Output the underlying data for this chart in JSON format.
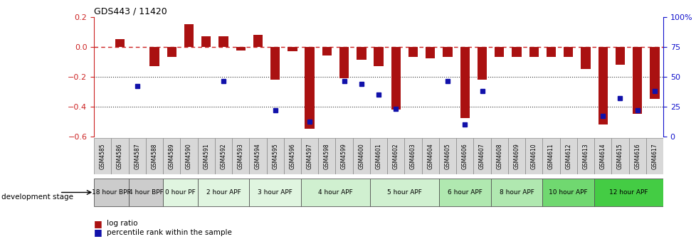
{
  "title": "GDS443 / 11420",
  "samples": [
    "GSM4585",
    "GSM4586",
    "GSM4587",
    "GSM4588",
    "GSM4589",
    "GSM4590",
    "GSM4591",
    "GSM4592",
    "GSM4593",
    "GSM4594",
    "GSM4595",
    "GSM4596",
    "GSM4597",
    "GSM4598",
    "GSM4599",
    "GSM4600",
    "GSM4601",
    "GSM4602",
    "GSM4603",
    "GSM4604",
    "GSM4605",
    "GSM4606",
    "GSM4607",
    "GSM4608",
    "GSM4609",
    "GSM4610",
    "GSM4611",
    "GSM4612",
    "GSM4613",
    "GSM4614",
    "GSM4615",
    "GSM4616",
    "GSM4617"
  ],
  "log_ratio": [
    0.0,
    0.05,
    0.0,
    -0.13,
    -0.07,
    0.15,
    0.07,
    0.07,
    -0.025,
    0.08,
    -0.22,
    -0.03,
    -0.55,
    -0.06,
    -0.21,
    -0.09,
    -0.13,
    -0.42,
    -0.07,
    -0.08,
    -0.07,
    -0.48,
    -0.22,
    -0.07,
    -0.07,
    -0.07,
    -0.07,
    -0.07,
    -0.15,
    -0.52,
    -0.12,
    -0.45,
    -0.35
  ],
  "percentile_rank": [
    null,
    null,
    42,
    null,
    null,
    null,
    null,
    46,
    null,
    null,
    22,
    null,
    12,
    null,
    46,
    44,
    35,
    23,
    null,
    null,
    46,
    10,
    38,
    null,
    null,
    null,
    null,
    null,
    null,
    17,
    32,
    22,
    38
  ],
  "stages": [
    {
      "label": "18 hour BPF",
      "start": 0,
      "end": 2,
      "color": "#cccccc"
    },
    {
      "label": "4 hour BPF",
      "start": 2,
      "end": 4,
      "color": "#cccccc"
    },
    {
      "label": "0 hour PF",
      "start": 4,
      "end": 6,
      "color": "#e0f5e0"
    },
    {
      "label": "2 hour APF",
      "start": 6,
      "end": 9,
      "color": "#e0f5e0"
    },
    {
      "label": "3 hour APF",
      "start": 9,
      "end": 12,
      "color": "#e0f5e0"
    },
    {
      "label": "4 hour APF",
      "start": 12,
      "end": 16,
      "color": "#d0f0d0"
    },
    {
      "label": "5 hour APF",
      "start": 16,
      "end": 20,
      "color": "#d0f0d0"
    },
    {
      "label": "6 hour APF",
      "start": 20,
      "end": 23,
      "color": "#b0e8b0"
    },
    {
      "label": "8 hour APF",
      "start": 23,
      "end": 26,
      "color": "#b0e8b0"
    },
    {
      "label": "10 hour APF",
      "start": 26,
      "end": 29,
      "color": "#70d870"
    },
    {
      "label": "12 hour APF",
      "start": 29,
      "end": 33,
      "color": "#44cc44"
    }
  ],
  "ylim_left": [
    -0.6,
    0.2
  ],
  "ylim_right": [
    0,
    100
  ],
  "bar_color": "#aa1111",
  "dot_color": "#1111aa",
  "zero_line_color": "#cc2222",
  "dotted_line_color": "#333333",
  "left_axis_color": "#cc2222",
  "right_axis_color": "#1111cc"
}
